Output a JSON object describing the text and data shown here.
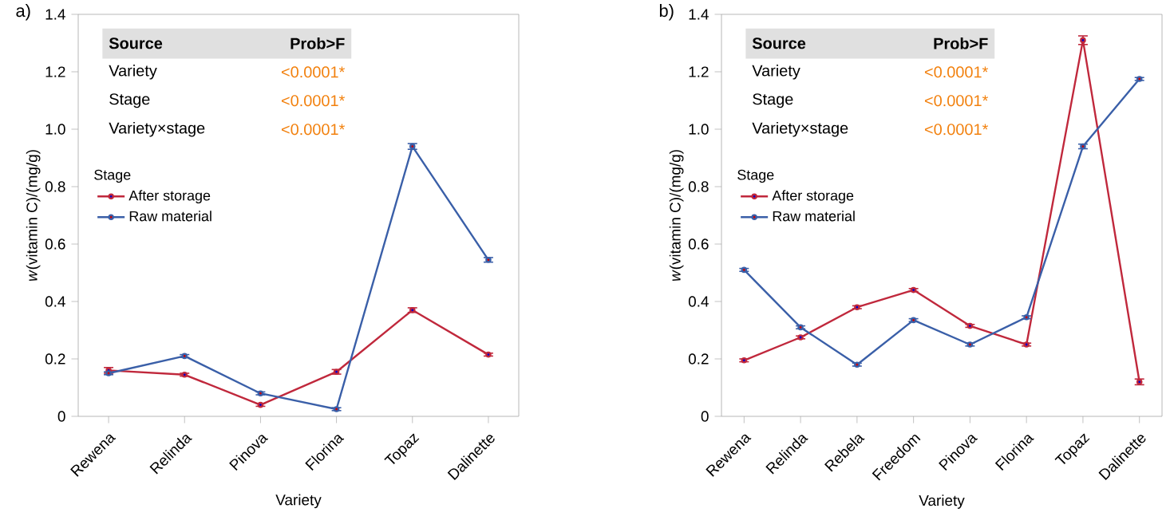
{
  "chart_data": [
    {
      "type": "line",
      "title": "a)",
      "xlabel": "Variety",
      "ylabel": "*w*(vitamin C)/(mg/g)",
      "categories": [
        "Rewena",
        "Relinda",
        "Pinova",
        "Florina",
        "Topaz",
        "Dalinette"
      ],
      "series": [
        {
          "name": "After storage",
          "color": "#c0283c",
          "values": [
            0.16,
            0.145,
            0.04,
            0.155,
            0.37,
            0.215
          ],
          "errors": [
            0.01,
            0.005,
            0.005,
            0.008,
            0.008,
            0.005
          ]
        },
        {
          "name": "Raw material",
          "color": "#3a5fa8",
          "values": [
            0.15,
            0.21,
            0.08,
            0.025,
            0.94,
            0.545
          ],
          "errors": [
            0.005,
            0.005,
            0.005,
            0.005,
            0.01,
            0.008
          ]
        }
      ],
      "ylim": [
        0,
        1.4
      ],
      "yticks": [
        0,
        0.2,
        0.4,
        0.6,
        0.8,
        {
          "value": 1,
          "label": "1.0"
        },
        1.2,
        1.4
      ],
      "legend": "left",
      "legend_title": "Stage",
      "marker": "circle",
      "annotations": [
        "Source",
        "Prob>F",
        "Variety",
        "<0.0001*",
        "Stage",
        "<0.0001*",
        "Variety×stage",
        "<0.0001*"
      ]
    },
    {
      "type": "line",
      "title": "b)",
      "xlabel": "Variety",
      "ylabel": "*w*(vitamin C)/(mg/g)",
      "categories": [
        "Rewena",
        "Relinda",
        "Rebela",
        "Freedom",
        "Pinova",
        "Florina",
        "Topaz",
        "Dalinette"
      ],
      "series": [
        {
          "name": "After storage",
          "color": "#c0283c",
          "values": [
            0.195,
            0.275,
            0.38,
            0.44,
            0.315,
            0.25,
            1.31,
            0.12
          ],
          "errors": [
            0.005,
            0.005,
            0.005,
            0.005,
            0.005,
            0.005,
            0.015,
            0.01
          ]
        },
        {
          "name": "Raw material",
          "color": "#3a5fa8",
          "values": [
            0.51,
            0.31,
            0.18,
            0.335,
            0.25,
            0.345,
            0.94,
            1.175
          ],
          "errors": [
            0.005,
            0.005,
            0.005,
            0.005,
            0.005,
            0.005,
            0.008,
            0.005
          ]
        }
      ],
      "ylim": [
        0,
        1.4
      ],
      "yticks": [
        0,
        0.2,
        0.4,
        0.6,
        0.8,
        {
          "value": 1,
          "label": "1.0"
        },
        1.2,
        1.4
      ],
      "legend": "left",
      "legend_title": "Stage",
      "marker": "circle",
      "annotations": [
        "Source",
        "Prob>F",
        "Variety",
        "<0.0001*",
        "Stage",
        "<0.0001*",
        "Variety×stage",
        "<0.0001*"
      ]
    }
  ]
}
